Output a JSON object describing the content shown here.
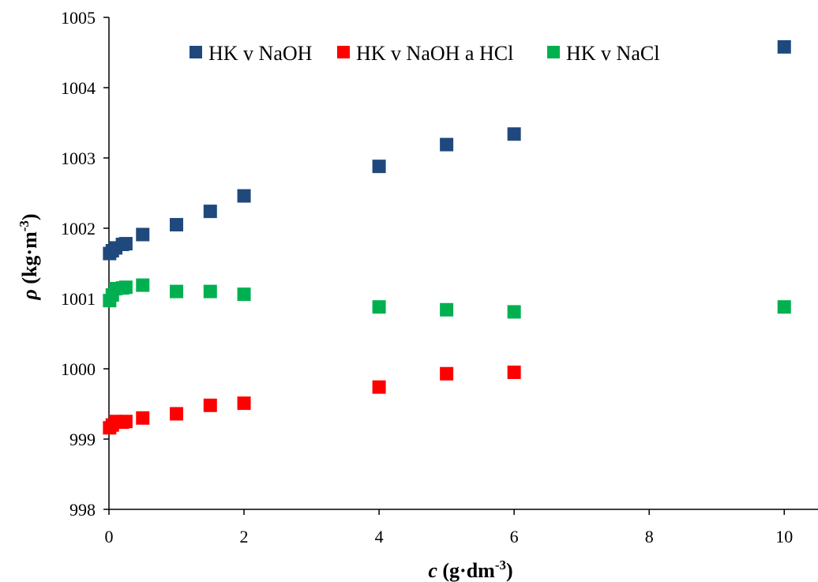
{
  "chart_data": {
    "type": "scatter",
    "title": "",
    "xlabel": {
      "symbol": "c",
      "unit": " (g·dm",
      "exp": "-3",
      "close": ")"
    },
    "ylabel": {
      "symbol": "ρ",
      "unit": " (kg·m",
      "exp": "-3",
      "close": ")"
    },
    "xlim": [
      0,
      10.5
    ],
    "ylim": [
      998,
      1005
    ],
    "x_ticks": [
      0,
      2,
      4,
      6,
      8,
      10
    ],
    "y_ticks": [
      998,
      999,
      1000,
      1001,
      1002,
      1003,
      1004,
      1005
    ],
    "grid": false,
    "legend_position": "top",
    "series": [
      {
        "name": "HK v NaOH",
        "color": "#1F497D",
        "x": [
          0.01,
          0.05,
          0.1,
          0.2,
          0.25,
          0.5,
          1.0,
          1.5,
          2.0,
          4.0,
          5.0,
          6.0,
          10.0
        ],
        "y": [
          1001.64,
          1001.68,
          1001.72,
          1001.77,
          1001.78,
          1001.91,
          1002.05,
          1002.24,
          1002.46,
          1002.88,
          1003.19,
          1003.34,
          1004.58
        ]
      },
      {
        "name": "HK v NaOH a HCl",
        "color": "#FF0000",
        "x": [
          0.01,
          0.05,
          0.1,
          0.2,
          0.25,
          0.5,
          1.0,
          1.5,
          2.0,
          4.0,
          5.0,
          6.0
        ],
        "y": [
          999.16,
          999.2,
          999.25,
          999.24,
          999.25,
          999.3,
          999.36,
          999.48,
          999.51,
          999.74,
          999.93,
          999.95
        ]
      },
      {
        "name": "HK v NaCl",
        "color": "#00B050",
        "x": [
          0.01,
          0.05,
          0.1,
          0.2,
          0.25,
          0.5,
          1.0,
          1.5,
          2.0,
          4.0,
          5.0,
          6.0,
          10.0
        ],
        "y": [
          1000.97,
          1001.05,
          1001.14,
          1001.15,
          1001.16,
          1001.19,
          1001.1,
          1001.1,
          1001.06,
          1000.88,
          1000.84,
          1000.81,
          1000.88
        ]
      }
    ]
  }
}
